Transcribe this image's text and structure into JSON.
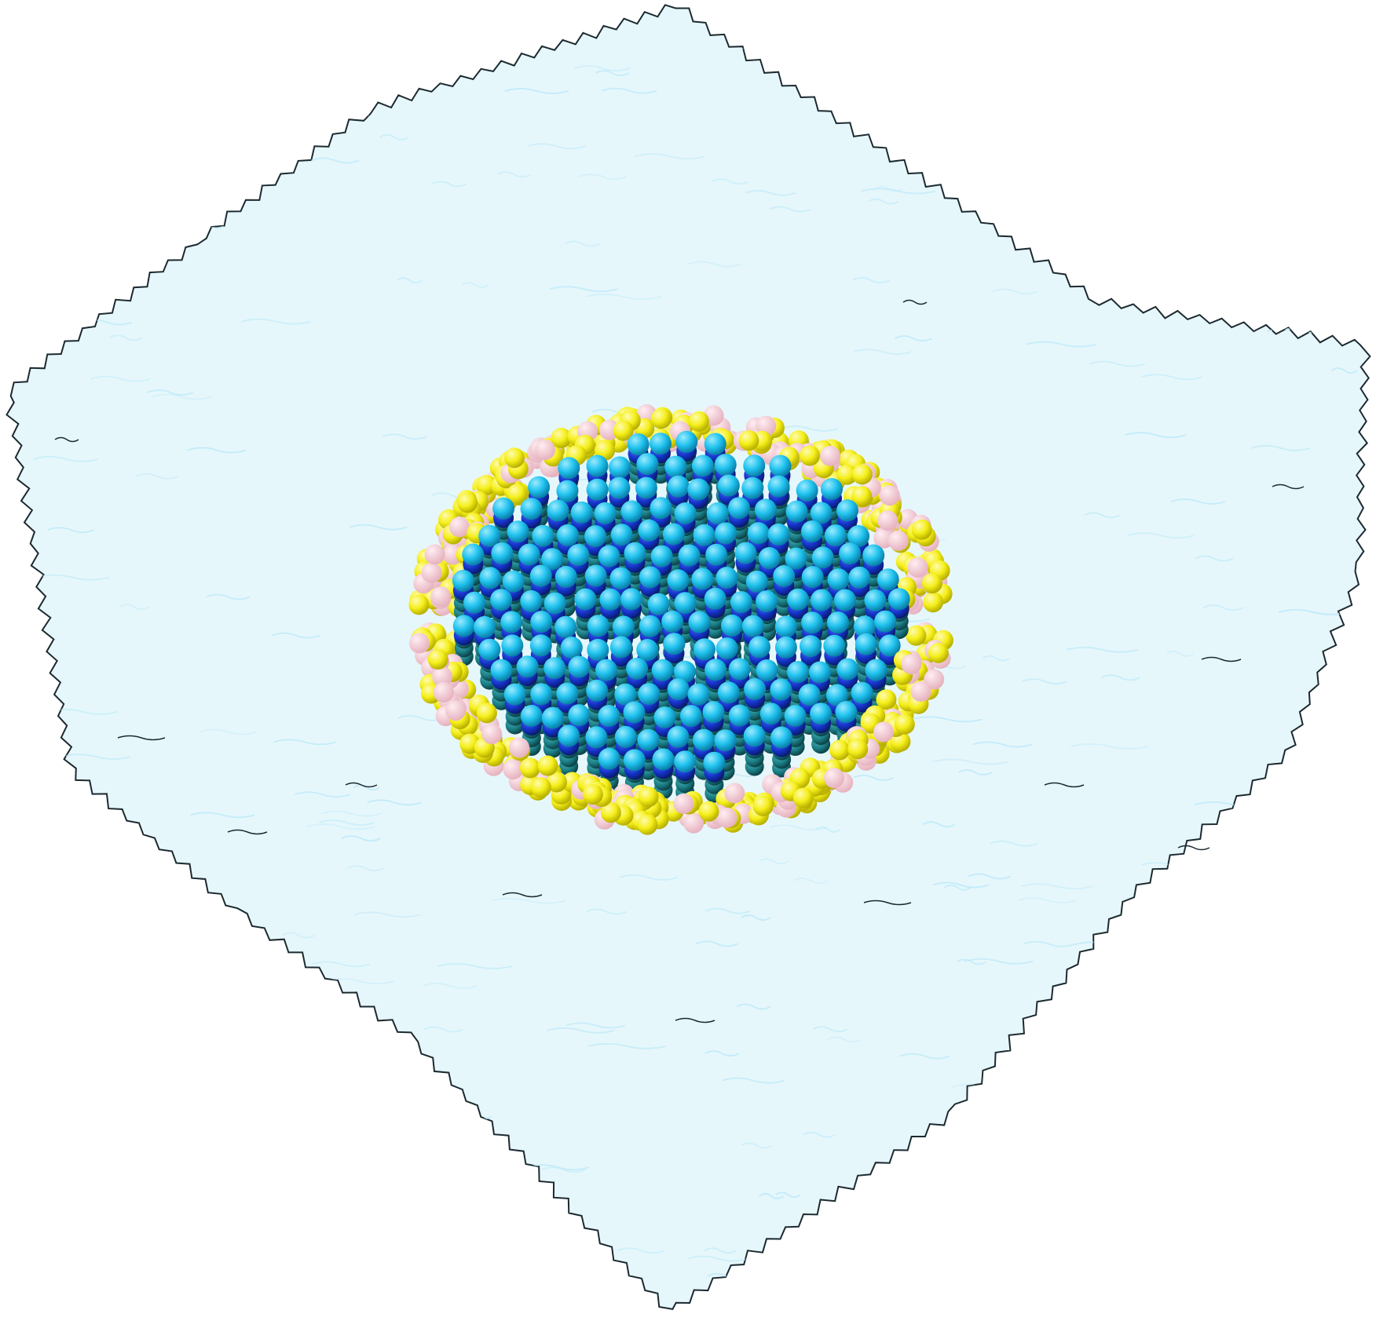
{
  "scene": {
    "subject": "molecular-simulation-box",
    "colors": {
      "background": "#ffffff",
      "water_fill": "#e6f7fc",
      "water_ripple": "#bfeaf8",
      "water_outline": "#1c2a30",
      "headgroup": "#f5ef1a",
      "headgroup_shade": "#c9c200",
      "lipid_middle": "#f3c9d2",
      "core_bead": "#1fc2ee",
      "core_bead_highlight": "#9beaff",
      "core_bead_dark": "#1433c8",
      "core_tail": "#1b7f86"
    }
  }
}
